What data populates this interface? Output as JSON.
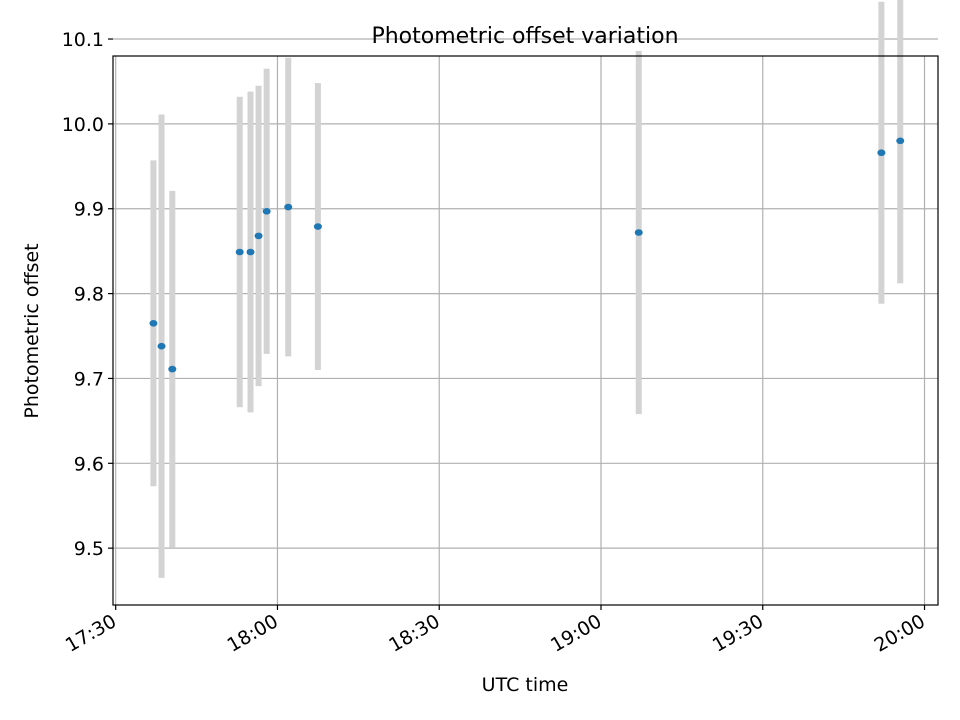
{
  "chart_data": {
    "type": "scatter",
    "title": "Photometric offset variation",
    "xlabel": "UTC time",
    "ylabel": "Photometric offset",
    "x_ticks": [
      "17:30",
      "18:00",
      "18:30",
      "19:00",
      "19:30",
      "20:00"
    ],
    "y_ticks": [
      "9.5",
      "9.6",
      "9.7",
      "9.8",
      "9.9",
      "10.0",
      "10.1"
    ],
    "xlim": [
      "17:29.5",
      "20:02.5"
    ],
    "ylim": [
      9.433,
      10.08
    ],
    "grid": true,
    "point_color": "#1f77b4",
    "errorbar_color": "#d3d3d3",
    "points": [
      {
        "x": "17:37",
        "y": 9.765,
        "err": 0.192
      },
      {
        "x": "17:38.5",
        "y": 9.738,
        "err": 0.273
      },
      {
        "x": "17:40.5",
        "y": 9.711,
        "err": 0.21
      },
      {
        "x": "17:53",
        "y": 9.849,
        "err": 0.183
      },
      {
        "x": "17:55",
        "y": 9.849,
        "err": 0.189
      },
      {
        "x": "17:56.5",
        "y": 9.868,
        "err": 0.177
      },
      {
        "x": "17:58",
        "y": 9.897,
        "err": 0.168
      },
      {
        "x": "18:02",
        "y": 9.902,
        "err": 0.176
      },
      {
        "x": "18:07.5",
        "y": 9.879,
        "err": 0.169
      },
      {
        "x": "19:07",
        "y": 9.872,
        "err": 0.214
      },
      {
        "x": "19:52",
        "y": 9.966,
        "err": 0.178
      },
      {
        "x": "19:55.5",
        "y": 9.98,
        "err": 0.168
      }
    ]
  }
}
